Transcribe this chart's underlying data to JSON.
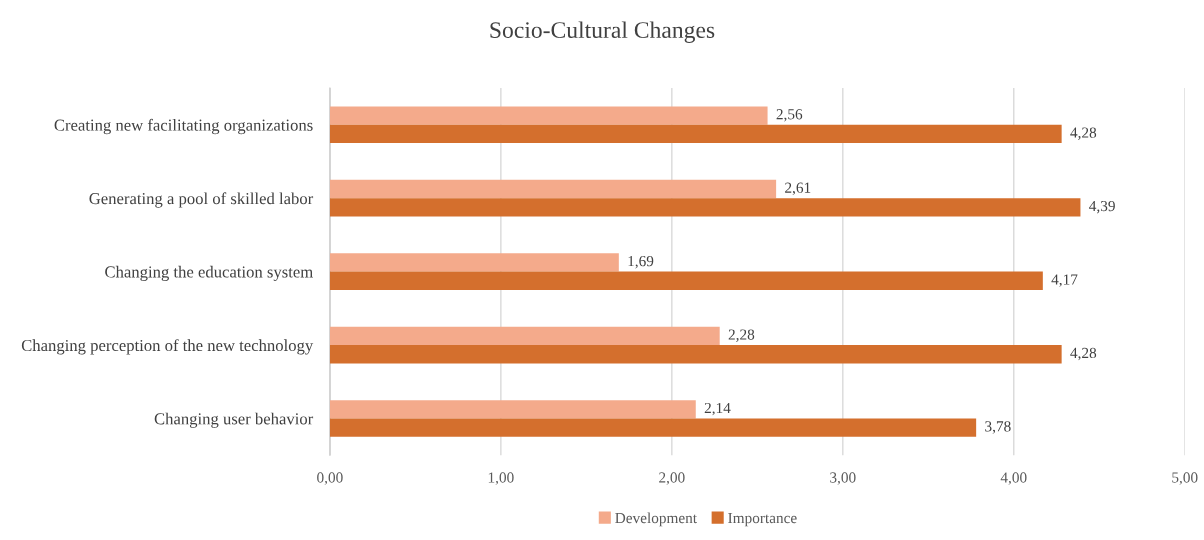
{
  "chart_data": {
    "type": "bar",
    "title": "Socio-Cultural Changes",
    "orientation": "horizontal",
    "categories": [
      "Creating new facilitating organizations",
      "Generating a pool of skilled labor",
      "Changing the education system",
      "Changing perception of the new technology",
      "Changing user behavior"
    ],
    "series": [
      {
        "name": "Development",
        "color": "#f4aa8b",
        "values": [
          2.56,
          2.61,
          1.69,
          2.28,
          2.14
        ],
        "value_labels": [
          "2,56",
          "2,61",
          "1,69",
          "2,28",
          "2,14"
        ]
      },
      {
        "name": "Importance",
        "color": "#d46f2d",
        "values": [
          4.28,
          4.39,
          4.17,
          4.28,
          3.78
        ],
        "value_labels": [
          "4,28",
          "4,39",
          "4,17",
          "4,28",
          "3,78"
        ]
      }
    ],
    "xlim": [
      0,
      5
    ],
    "xticks": [
      {
        "value": 0,
        "label": "0,00"
      },
      {
        "value": 1,
        "label": "1,00"
      },
      {
        "value": 2,
        "label": "2,00"
      },
      {
        "value": 3,
        "label": "3,00"
      },
      {
        "value": 4,
        "label": "4,00"
      },
      {
        "value": 5,
        "label": "5,00"
      }
    ],
    "grid": "x",
    "legend": "bottom"
  }
}
